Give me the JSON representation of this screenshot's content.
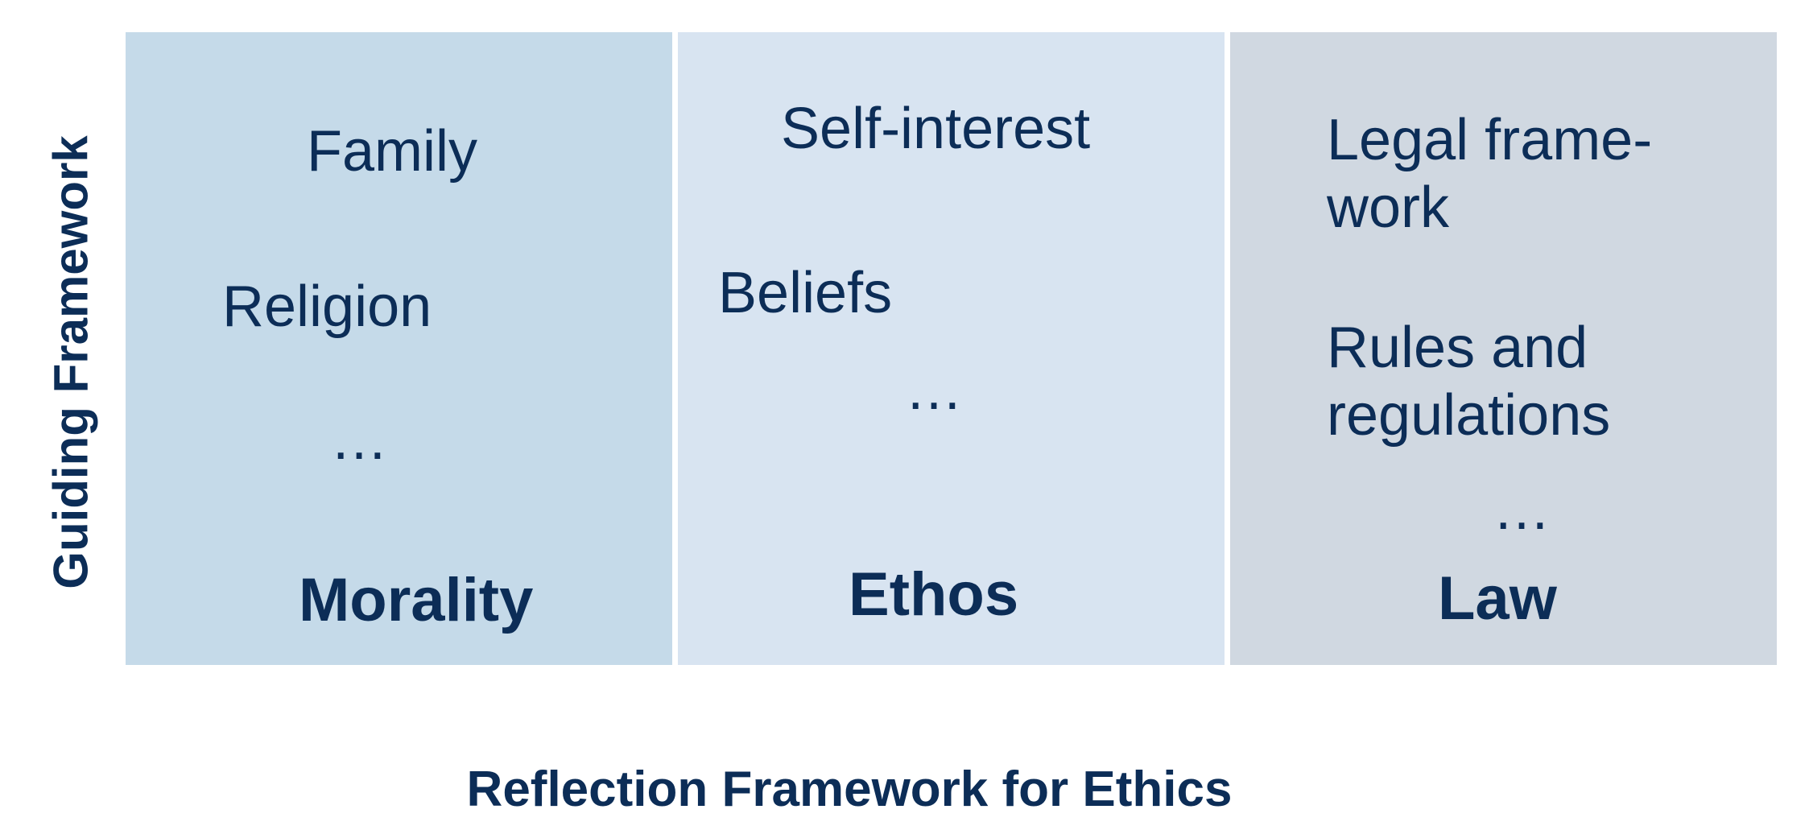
{
  "axes": {
    "y_label": "Guiding Framework",
    "x_label": "Reflection Framework for Ethics"
  },
  "colors": {
    "text": "#0c2d57",
    "morality_bg": "#c5dae9",
    "ethos_bg": "#d8e4f1",
    "law_bg": "#d0d8e1"
  },
  "columns": [
    {
      "heading": "Morality",
      "items": [
        "Family",
        "Religion",
        "…"
      ]
    },
    {
      "heading": "Ethos",
      "items": [
        "Self-interest",
        "Beliefs",
        "…"
      ]
    },
    {
      "heading": "Law",
      "items": [
        "Legal frame-\nwork",
        "Rules and\nregulations",
        "…"
      ]
    }
  ]
}
